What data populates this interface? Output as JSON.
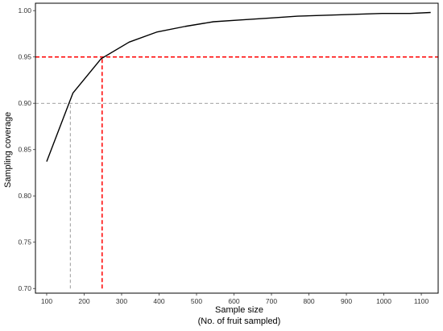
{
  "chart_data": {
    "type": "line",
    "xlabel": "Sample size",
    "xlabel_line2": "(No. of fruit sampled)",
    "ylabel": "Sampling coverage",
    "xlim": [
      70,
      1145
    ],
    "ylim": [
      0.695,
      1.008
    ],
    "x_ticks": [
      100,
      200,
      300,
      400,
      500,
      600,
      700,
      800,
      900,
      1000,
      1100
    ],
    "y_ticks": [
      0.7,
      0.75,
      0.8,
      0.85,
      0.9,
      0.95,
      1.0
    ],
    "x_tick_labels": [
      "100",
      "200",
      "300",
      "400",
      "500",
      "600",
      "700",
      "800",
      "900",
      "1000",
      "1100"
    ],
    "y_tick_labels": [
      "0.70",
      "0.75",
      "0.80",
      "0.85",
      "0.90",
      "0.95",
      "1.00"
    ],
    "grid": false,
    "series": [
      {
        "color": "#000000",
        "x": [
          100,
          170,
          245,
          320,
          395,
          470,
          545,
          620,
          695,
          770,
          845,
          920,
          995,
          1070,
          1125
        ],
        "y": [
          0.837,
          0.911,
          0.948,
          0.966,
          0.977,
          0.983,
          0.988,
          0.99,
          0.992,
          0.994,
          0.995,
          0.996,
          0.997,
          0.997,
          0.998
        ]
      }
    ],
    "reference_lines": [
      {
        "orientation": "horizontal",
        "y": 0.9,
        "color": "#808080",
        "style": "dashed"
      },
      {
        "orientation": "vertical",
        "x": 163,
        "y_from": 0.7,
        "y_to": 0.9,
        "color": "#808080",
        "style": "dashed"
      },
      {
        "orientation": "horizontal",
        "y": 0.95,
        "color": "#ff0000",
        "style": "dashed"
      },
      {
        "orientation": "vertical",
        "x": 248,
        "y_from": 0.7,
        "y_to": 0.95,
        "color": "#ff0000",
        "style": "dashed"
      }
    ]
  }
}
